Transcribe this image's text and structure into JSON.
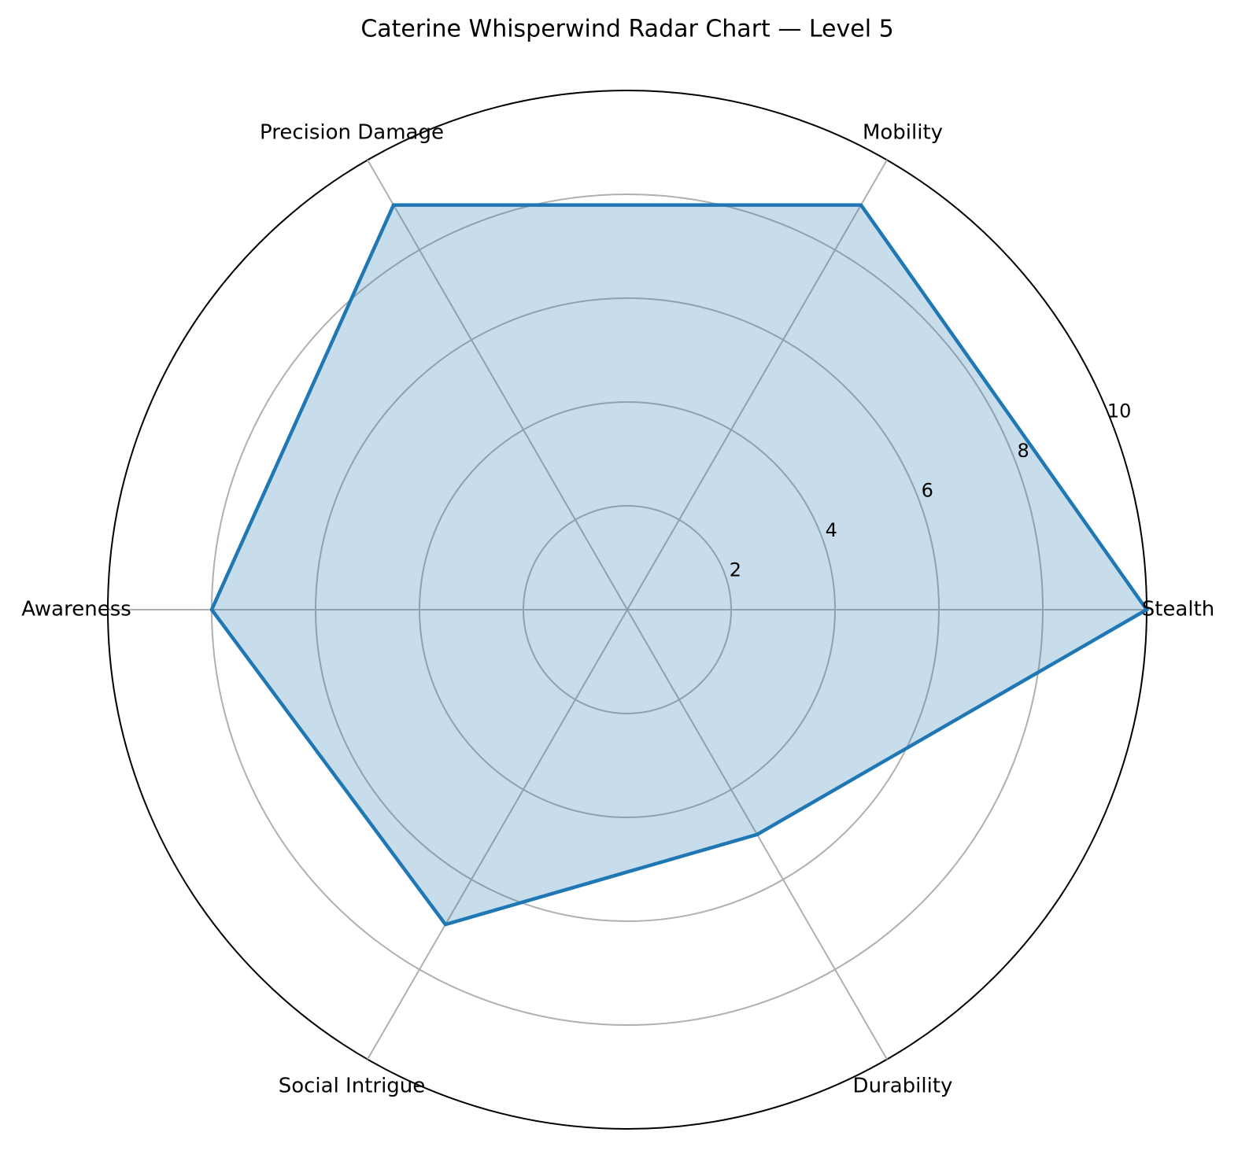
{
  "chart_data": {
    "type": "radar",
    "title": "Caterine Whisperwind Radar Chart — Level 5",
    "categories": [
      "Stealth",
      "Mobility",
      "Precision Damage",
      "Awareness",
      "Social Intrigue",
      "Durability"
    ],
    "values": [
      10,
      9,
      9,
      8,
      7,
      5
    ],
    "color": "#1f77b4",
    "ylim": [
      0,
      10
    ],
    "yticks": [
      2,
      4,
      6,
      8,
      10
    ],
    "grid": true
  }
}
